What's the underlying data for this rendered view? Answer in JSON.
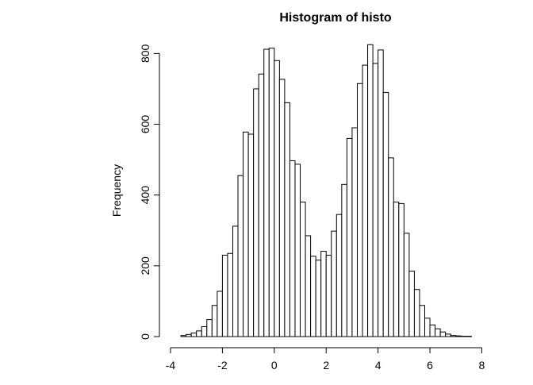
{
  "chart_data": {
    "type": "bar",
    "title": "Histogram of histo",
    "xlabel": "",
    "ylabel": "Frequency",
    "bin_width": 0.2,
    "bin_start": -3.6,
    "bin_end": 8.2,
    "xlim": [
      -4,
      8.2
    ],
    "ylim": [
      0,
      830
    ],
    "x_ticks": [
      -4,
      -2,
      0,
      2,
      4,
      6,
      8
    ],
    "y_ticks": [
      0,
      200,
      400,
      600,
      800
    ],
    "grid": false,
    "legend": "none",
    "bar_fill": "#ffffff",
    "bar_stroke": "#000000",
    "values": [
      3,
      6,
      10,
      16,
      28,
      48,
      88,
      128,
      230,
      235,
      312,
      455,
      578,
      572,
      700,
      742,
      812,
      815,
      780,
      727,
      661,
      497,
      487,
      380,
      285,
      227,
      216,
      241,
      230,
      298,
      345,
      430,
      560,
      590,
      715,
      767,
      825,
      772,
      810,
      690,
      505,
      380,
      376,
      292,
      185,
      133,
      88,
      52,
      33,
      22,
      13,
      7,
      3,
      2,
      1,
      1,
      0,
      0,
      0
    ]
  }
}
